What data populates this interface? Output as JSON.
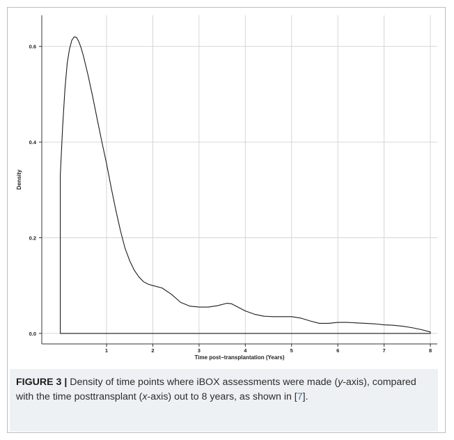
{
  "figure": {
    "label": "FIGURE 3 |",
    "caption_parts": [
      {
        "text": " Density of time points where iBOX assessments were made (",
        "italic": false
      },
      {
        "text": "y",
        "italic": true
      },
      {
        "text": "-axis), compared with the time posttransplant (",
        "italic": false
      },
      {
        "text": "x",
        "italic": true
      },
      {
        "text": "-axis) out to 8 years, as shown in [",
        "italic": false
      },
      {
        "text": "7",
        "italic": false,
        "ref": true
      },
      {
        "text": "].",
        "italic": false
      }
    ]
  },
  "colors": {
    "curve": "#1a1a1a",
    "grid": "#d6d6d6",
    "axis": "#333333",
    "caption_bg": "#eef1f3",
    "ref_link": "#4a6fa5"
  },
  "chart_data": {
    "type": "area",
    "title": "",
    "xlabel": "Time post−transplantation (Years)",
    "ylabel": "Density",
    "xlim": [
      -0.4,
      8.15
    ],
    "ylim": [
      -0.022,
      0.665
    ],
    "x_ticks": [
      1,
      2,
      3,
      4,
      5,
      6,
      7,
      8
    ],
    "x_tick_labels": [
      "1",
      "2",
      "3",
      "4",
      "5",
      "6",
      "7",
      "8"
    ],
    "y_ticks": [
      0.0,
      0.2,
      0.4,
      0.6
    ],
    "y_tick_labels": [
      "0.0",
      "0.2",
      "0.4",
      "0.6"
    ],
    "grid": true,
    "series": [
      {
        "x": [
          0.0,
          0.05,
          0.1,
          0.15,
          0.2,
          0.25,
          0.3,
          0.35,
          0.4,
          0.45,
          0.5,
          0.6,
          0.7,
          0.8,
          0.9,
          1.0,
          1.1,
          1.2,
          1.3,
          1.4,
          1.5,
          1.6,
          1.7,
          1.8,
          1.9,
          2.0,
          2.2,
          2.4,
          2.6,
          2.8,
          3.0,
          3.2,
          3.4,
          3.6,
          3.7,
          3.8,
          4.0,
          4.2,
          4.4,
          4.6,
          4.8,
          5.0,
          5.2,
          5.4,
          5.6,
          5.8,
          6.0,
          6.2,
          6.4,
          6.6,
          6.8,
          7.0,
          7.2,
          7.4,
          7.6,
          7.8,
          8.0
        ],
        "y": [
          0.33,
          0.43,
          0.51,
          0.565,
          0.595,
          0.613,
          0.62,
          0.619,
          0.61,
          0.597,
          0.58,
          0.54,
          0.495,
          0.447,
          0.4,
          0.355,
          0.305,
          0.258,
          0.215,
          0.178,
          0.152,
          0.132,
          0.118,
          0.108,
          0.103,
          0.1,
          0.095,
          0.082,
          0.065,
          0.057,
          0.055,
          0.055,
          0.058,
          0.063,
          0.062,
          0.057,
          0.047,
          0.04,
          0.036,
          0.035,
          0.035,
          0.035,
          0.032,
          0.026,
          0.021,
          0.021,
          0.023,
          0.023,
          0.022,
          0.021,
          0.02,
          0.018,
          0.017,
          0.015,
          0.012,
          0.008,
          0.003
        ]
      }
    ]
  }
}
